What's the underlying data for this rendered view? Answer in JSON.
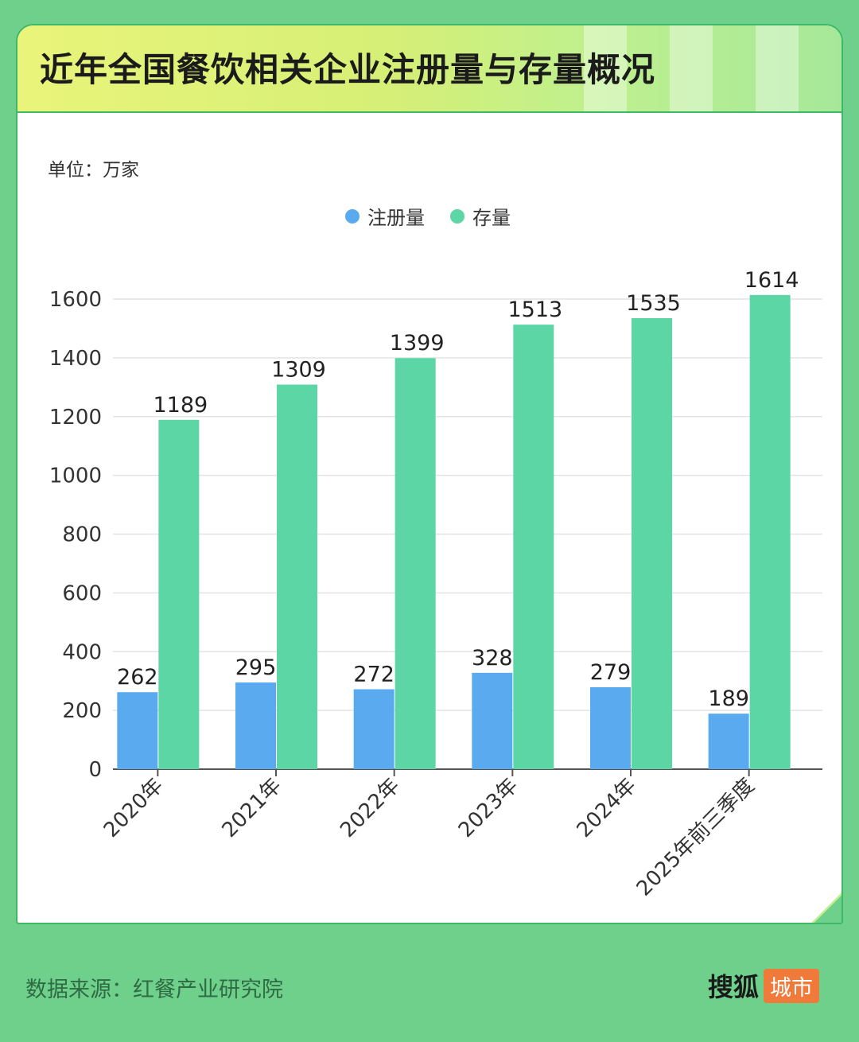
{
  "title": "近年全国餐饮相关企业注册量与存量概况",
  "unit": "单位：万家",
  "source": "数据来源：红餐产业研究院",
  "brand": {
    "main": "搜狐",
    "city": "城市"
  },
  "colors": {
    "registrations": "#5aaaf0",
    "stock": "#5dd6a6",
    "background": "#6fd08c"
  },
  "chart_data": {
    "type": "bar",
    "categories": [
      "2020年",
      "2021年",
      "2022年",
      "2023年",
      "2024年",
      "2025年前三季度"
    ],
    "series": [
      {
        "name": "注册量",
        "values": [
          262,
          295,
          272,
          328,
          279,
          189
        ]
      },
      {
        "name": "存量",
        "values": [
          1189,
          1309,
          1399,
          1513,
          1535,
          1614
        ]
      }
    ],
    "yticks": [
      0,
      200,
      400,
      600,
      800,
      1000,
      1200,
      1400,
      1600
    ],
    "ylim": [
      0,
      1600
    ],
    "grid": true,
    "legend": "top-center"
  }
}
